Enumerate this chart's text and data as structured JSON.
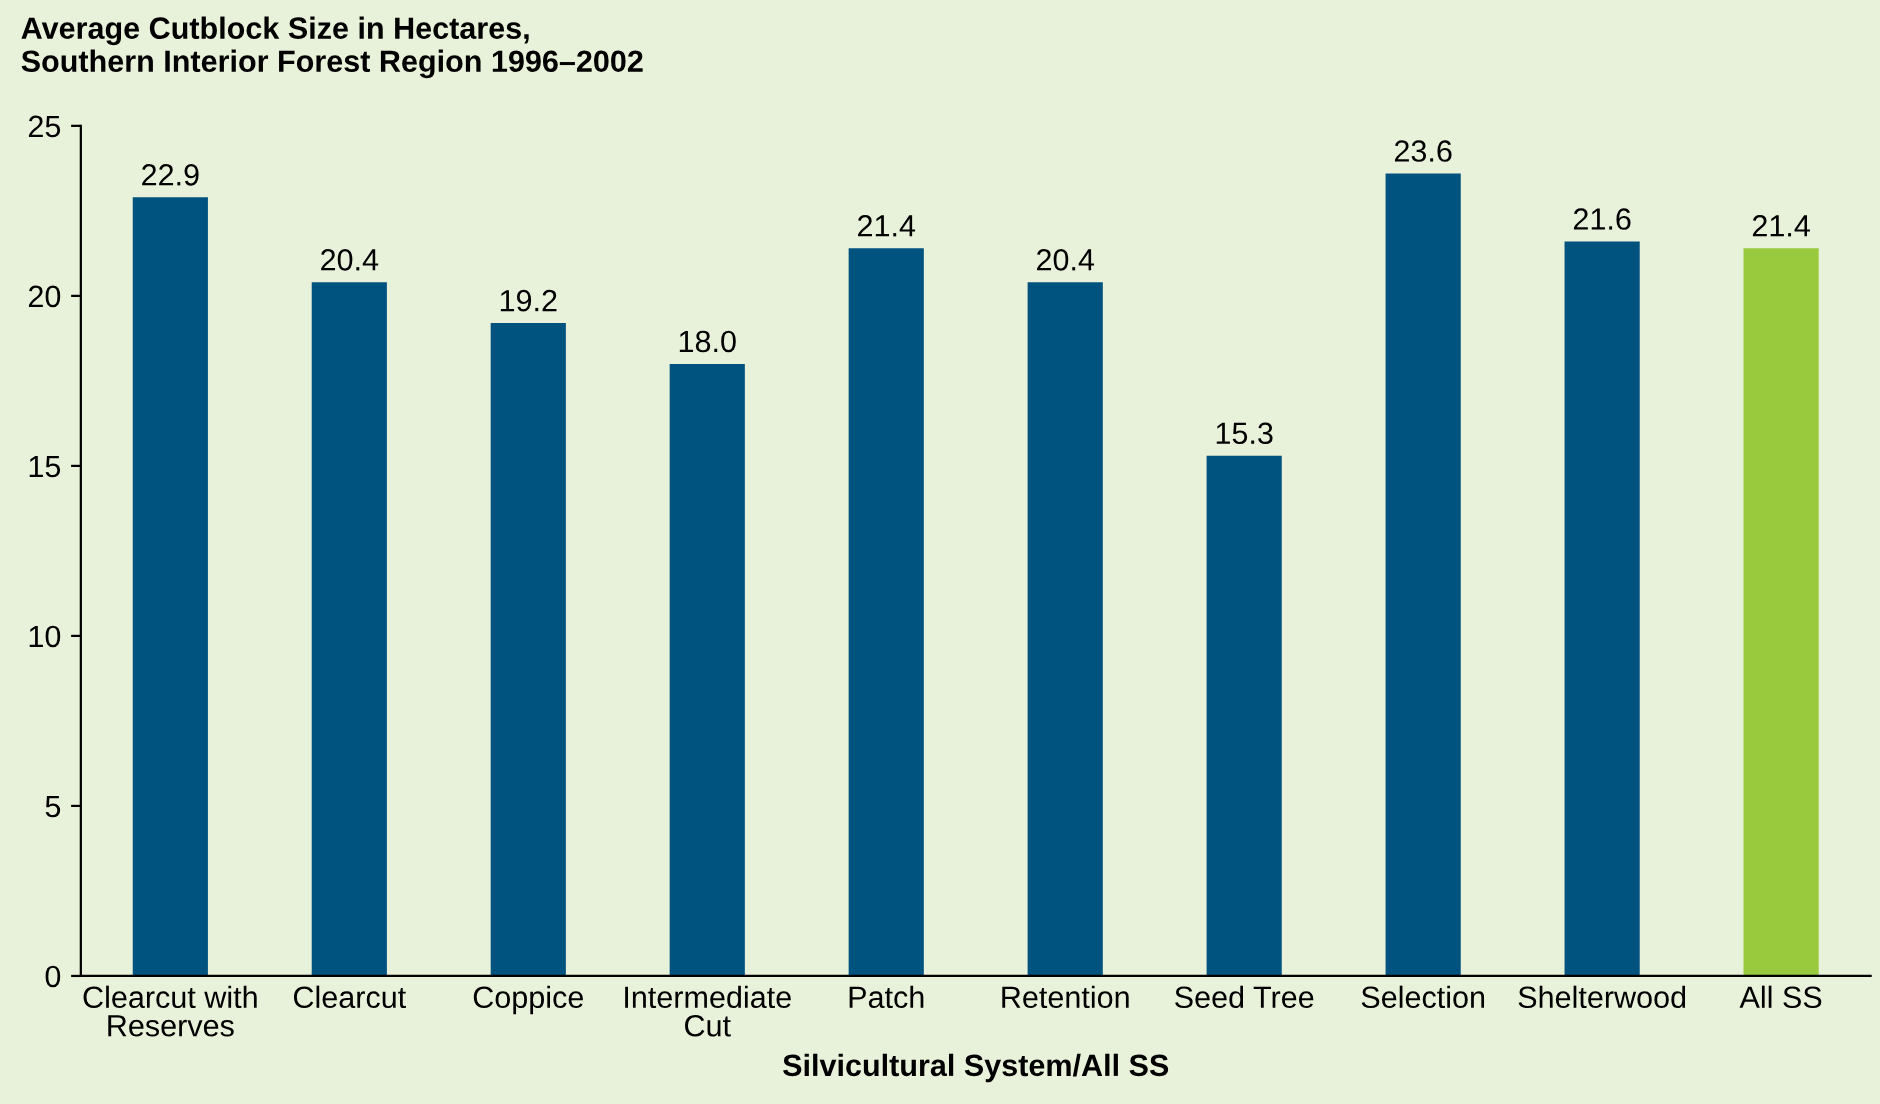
{
  "chart_data": {
    "type": "bar",
    "title": "Average Cutblock Size in Hectares,\nSouthern Interior Forest Region 1996–2002",
    "xlabel": "Silvicultural System/All SS",
    "categories": [
      "Clearcut with\nReserves",
      "Clearcut",
      "Coppice",
      "Intermediate\nCut",
      "Patch",
      "Retention",
      "Seed Tree",
      "Selection",
      "Shelterwood",
      "All SS"
    ],
    "values": [
      22.9,
      20.4,
      19.2,
      18.0,
      21.4,
      20.4,
      15.3,
      23.6,
      21.6,
      21.4
    ],
    "colors": [
      "#00527f",
      "#00527f",
      "#00527f",
      "#00527f",
      "#00527f",
      "#00527f",
      "#00527f",
      "#00527f",
      "#00527f",
      "#99c93c"
    ],
    "value_labels": [
      "22.9",
      "20.4",
      "19.2",
      "18.0",
      "21.4",
      "20.4",
      "15.3",
      "23.6",
      "21.6",
      "21.4"
    ],
    "ylim": [
      0,
      25
    ],
    "yticks": [
      0,
      5,
      10,
      15,
      20,
      25
    ],
    "grid": false,
    "legend": false
  }
}
